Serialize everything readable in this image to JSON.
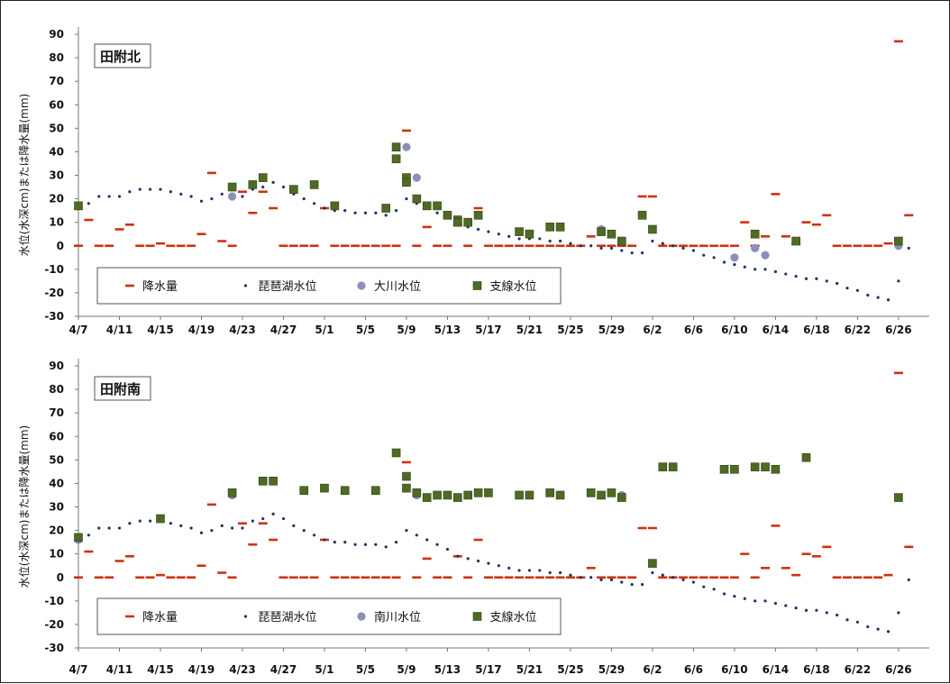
{
  "chart_data": [
    {
      "type": "scatter",
      "title": "田附北",
      "ylabel": "水位(水深cm)または降水量(mm)",
      "ylim": [
        -30,
        90
      ],
      "yticks": [
        90,
        80,
        70,
        60,
        50,
        40,
        30,
        20,
        10,
        0,
        -10,
        -20,
        -30
      ],
      "xtick_labels": [
        "4/7",
        "4/11",
        "4/15",
        "4/19",
        "4/23",
        "4/27",
        "5/1",
        "5/5",
        "5/9",
        "5/13",
        "5/17",
        "5/21",
        "5/25",
        "5/29",
        "6/2",
        "6/6",
        "6/10",
        "6/14",
        "6/18",
        "6/22",
        "6/26"
      ],
      "grid": false,
      "legend_position": "bottom-left",
      "series": [
        {
          "name": "降水量",
          "marker": "dash",
          "color": "#cc3311",
          "x": [
            "4/7",
            "4/8",
            "4/9",
            "4/10",
            "4/11",
            "4/12",
            "4/13",
            "4/14",
            "4/15",
            "4/16",
            "4/17",
            "4/18",
            "4/19",
            "4/20",
            "4/21",
            "4/22",
            "4/23",
            "4/24",
            "4/25",
            "4/26",
            "4/27",
            "4/28",
            "4/29",
            "4/30",
            "5/1",
            "5/2",
            "5/3",
            "5/4",
            "5/5",
            "5/6",
            "5/7",
            "5/8",
            "5/9",
            "5/10",
            "5/11",
            "5/12",
            "5/13",
            "5/14",
            "5/15",
            "5/16",
            "5/17",
            "5/18",
            "5/19",
            "5/20",
            "5/21",
            "5/22",
            "5/23",
            "5/24",
            "5/25",
            "5/26",
            "5/27",
            "5/28",
            "5/29",
            "5/30",
            "5/31",
            "6/1",
            "6/2",
            "6/3",
            "6/4",
            "6/5",
            "6/6",
            "6/7",
            "6/8",
            "6/9",
            "6/10",
            "6/11",
            "6/12",
            "6/13",
            "6/14",
            "6/15",
            "6/16",
            "6/17",
            "6/18",
            "6/19",
            "6/20",
            "6/21",
            "6/22",
            "6/23",
            "6/24",
            "6/25",
            "6/26",
            "6/27"
          ],
          "y": [
            0,
            11,
            0,
            0,
            7,
            9,
            0,
            0,
            1,
            0,
            0,
            0,
            5,
            31,
            2,
            0,
            23,
            14,
            23,
            16,
            0,
            0,
            0,
            0,
            16,
            0,
            0,
            0,
            0,
            0,
            0,
            0,
            49,
            0,
            8,
            0,
            0,
            9,
            0,
            16,
            0,
            0,
            0,
            0,
            0,
            0,
            0,
            0,
            0,
            0,
            4,
            0,
            0,
            0,
            0,
            21,
            21,
            0,
            0,
            0,
            0,
            0,
            0,
            0,
            0,
            10,
            0,
            4,
            22,
            4,
            1,
            10,
            9,
            13,
            0,
            0,
            0,
            0,
            0,
            1,
            87,
            13
          ]
        },
        {
          "name": "琵琶湖水位",
          "marker": "dot",
          "color": "#223366",
          "x": [
            "4/7",
            "4/8",
            "4/9",
            "4/10",
            "4/11",
            "4/12",
            "4/13",
            "4/14",
            "4/15",
            "4/16",
            "4/17",
            "4/18",
            "4/19",
            "4/20",
            "4/21",
            "4/22",
            "4/23",
            "4/24",
            "4/25",
            "4/26",
            "4/27",
            "4/28",
            "4/29",
            "4/30",
            "5/1",
            "5/2",
            "5/3",
            "5/4",
            "5/5",
            "5/6",
            "5/7",
            "5/8",
            "5/9",
            "5/10",
            "5/11",
            "5/12",
            "5/13",
            "5/14",
            "5/15",
            "5/16",
            "5/17",
            "5/18",
            "5/19",
            "5/20",
            "5/21",
            "5/22",
            "5/23",
            "5/24",
            "5/25",
            "5/26",
            "5/27",
            "5/28",
            "5/29",
            "5/30",
            "5/31",
            "6/1",
            "6/2",
            "6/3",
            "6/4",
            "6/5",
            "6/6",
            "6/7",
            "6/8",
            "6/9",
            "6/10",
            "6/11",
            "6/12",
            "6/13",
            "6/14",
            "6/15",
            "6/16",
            "6/17",
            "6/18",
            "6/19",
            "6/20",
            "6/21",
            "6/22",
            "6/23",
            "6/24",
            "6/25",
            "6/26",
            "6/27"
          ],
          "y": [
            16,
            18,
            21,
            21,
            21,
            23,
            24,
            24,
            24,
            23,
            22,
            21,
            19,
            20,
            22,
            21,
            21,
            24,
            25,
            27,
            25,
            22,
            20,
            18,
            16,
            15,
            15,
            14,
            14,
            14,
            13,
            15,
            20,
            18,
            16,
            14,
            12,
            9,
            8,
            7,
            6,
            5,
            4,
            3,
            3,
            3,
            2,
            2,
            1,
            0,
            0,
            -1,
            -1,
            -2,
            -3,
            -3,
            2,
            1,
            0,
            -1,
            -2,
            -4,
            -5,
            -7,
            -8,
            -9,
            -10,
            -10,
            -11,
            -12,
            -13,
            -14,
            -14,
            -15,
            -16,
            -18,
            -19,
            -21,
            -22,
            -23,
            -15,
            -1
          ]
        },
        {
          "name": "大川水位",
          "marker": "circle",
          "color": "#8c8fb8",
          "x": [
            "4/7",
            "4/22",
            "5/9",
            "5/10",
            "5/28",
            "5/29",
            "6/10",
            "6/12",
            "6/13",
            "6/26"
          ],
          "y": [
            17,
            21,
            42,
            29,
            7,
            5,
            -5,
            -1,
            -4,
            0
          ]
        },
        {
          "name": "支線水位",
          "marker": "square",
          "color": "#4e6a24",
          "x": [
            "4/7",
            "4/22",
            "4/24",
            "4/25",
            "4/28",
            "4/30",
            "5/2",
            "5/7",
            "5/8",
            "5/8",
            "5/9",
            "5/9",
            "5/10",
            "5/11",
            "5/12",
            "5/13",
            "5/14",
            "5/14",
            "5/15",
            "5/16",
            "5/20",
            "5/21",
            "5/23",
            "5/24",
            "5/28",
            "5/29",
            "5/30",
            "6/1",
            "6/2",
            "6/12",
            "6/16",
            "6/26"
          ],
          "y": [
            17,
            25,
            26,
            29,
            24,
            26,
            17,
            16,
            42,
            37,
            29,
            27,
            20,
            17,
            17,
            13,
            11,
            10,
            10,
            13,
            6,
            5,
            8,
            8,
            6,
            5,
            2,
            13,
            7,
            5,
            2,
            2
          ]
        }
      ]
    },
    {
      "type": "scatter",
      "title": "田附南",
      "ylabel": "水位(水深cm)または降水量(mm)",
      "ylim": [
        -30,
        90
      ],
      "yticks": [
        90,
        80,
        70,
        60,
        50,
        40,
        30,
        20,
        10,
        0,
        -10,
        -20,
        -30
      ],
      "xtick_labels": [
        "4/7",
        "4/11",
        "4/15",
        "4/19",
        "4/23",
        "4/27",
        "5/1",
        "5/5",
        "5/9",
        "5/13",
        "5/17",
        "5/21",
        "5/25",
        "5/29",
        "6/2",
        "6/6",
        "6/10",
        "6/14",
        "6/18",
        "6/22",
        "6/26"
      ],
      "grid": false,
      "legend_position": "bottom-left",
      "series": [
        {
          "name": "降水量",
          "marker": "dash",
          "color": "#cc3311",
          "x": [
            "4/7",
            "4/8",
            "4/9",
            "4/10",
            "4/11",
            "4/12",
            "4/13",
            "4/14",
            "4/15",
            "4/16",
            "4/17",
            "4/18",
            "4/19",
            "4/20",
            "4/21",
            "4/22",
            "4/23",
            "4/24",
            "4/25",
            "4/26",
            "4/27",
            "4/28",
            "4/29",
            "4/30",
            "5/1",
            "5/2",
            "5/3",
            "5/4",
            "5/5",
            "5/6",
            "5/7",
            "5/8",
            "5/9",
            "5/10",
            "5/11",
            "5/12",
            "5/13",
            "5/14",
            "5/15",
            "5/16",
            "5/17",
            "5/18",
            "5/19",
            "5/20",
            "5/21",
            "5/22",
            "5/23",
            "5/24",
            "5/25",
            "5/26",
            "5/27",
            "5/28",
            "5/29",
            "5/30",
            "5/31",
            "6/1",
            "6/2",
            "6/3",
            "6/4",
            "6/5",
            "6/6",
            "6/7",
            "6/8",
            "6/9",
            "6/10",
            "6/11",
            "6/12",
            "6/13",
            "6/14",
            "6/15",
            "6/16",
            "6/17",
            "6/18",
            "6/19",
            "6/20",
            "6/21",
            "6/22",
            "6/23",
            "6/24",
            "6/25",
            "6/26",
            "6/27"
          ],
          "y": [
            0,
            11,
            0,
            0,
            7,
            9,
            0,
            0,
            1,
            0,
            0,
            0,
            5,
            31,
            2,
            0,
            23,
            14,
            23,
            16,
            0,
            0,
            0,
            0,
            16,
            0,
            0,
            0,
            0,
            0,
            0,
            0,
            49,
            0,
            8,
            0,
            0,
            9,
            0,
            16,
            0,
            0,
            0,
            0,
            0,
            0,
            0,
            0,
            0,
            0,
            4,
            0,
            0,
            0,
            0,
            21,
            21,
            0,
            0,
            0,
            0,
            0,
            0,
            0,
            0,
            10,
            0,
            4,
            22,
            4,
            1,
            10,
            9,
            13,
            0,
            0,
            0,
            0,
            0,
            1,
            87,
            13
          ]
        },
        {
          "name": "琵琶湖水位",
          "marker": "dot",
          "color": "#223366",
          "x": [
            "4/7",
            "4/8",
            "4/9",
            "4/10",
            "4/11",
            "4/12",
            "4/13",
            "4/14",
            "4/15",
            "4/16",
            "4/17",
            "4/18",
            "4/19",
            "4/20",
            "4/21",
            "4/22",
            "4/23",
            "4/24",
            "4/25",
            "4/26",
            "4/27",
            "4/28",
            "4/29",
            "4/30",
            "5/1",
            "5/2",
            "5/3",
            "5/4",
            "5/5",
            "5/6",
            "5/7",
            "5/8",
            "5/9",
            "5/10",
            "5/11",
            "5/12",
            "5/13",
            "5/14",
            "5/15",
            "5/16",
            "5/17",
            "5/18",
            "5/19",
            "5/20",
            "5/21",
            "5/22",
            "5/23",
            "5/24",
            "5/25",
            "5/26",
            "5/27",
            "5/28",
            "5/29",
            "5/30",
            "5/31",
            "6/1",
            "6/2",
            "6/3",
            "6/4",
            "6/5",
            "6/6",
            "6/7",
            "6/8",
            "6/9",
            "6/10",
            "6/11",
            "6/12",
            "6/13",
            "6/14",
            "6/15",
            "6/16",
            "6/17",
            "6/18",
            "6/19",
            "6/20",
            "6/21",
            "6/22",
            "6/23",
            "6/24",
            "6/25",
            "6/26",
            "6/27"
          ],
          "y": [
            16,
            18,
            21,
            21,
            21,
            23,
            24,
            24,
            24,
            23,
            22,
            21,
            19,
            20,
            22,
            21,
            21,
            24,
            25,
            27,
            25,
            22,
            20,
            18,
            16,
            15,
            15,
            14,
            14,
            14,
            13,
            15,
            20,
            18,
            16,
            14,
            12,
            9,
            8,
            7,
            6,
            5,
            4,
            3,
            3,
            3,
            2,
            2,
            1,
            0,
            0,
            -1,
            -1,
            -2,
            -3,
            -3,
            2,
            1,
            0,
            -1,
            -2,
            -4,
            -5,
            -7,
            -8,
            -9,
            -10,
            -10,
            -11,
            -12,
            -13,
            -14,
            -14,
            -15,
            -16,
            -18,
            -19,
            -21,
            -22,
            -23,
            -15,
            -1
          ]
        },
        {
          "name": "南川水位",
          "marker": "circle",
          "color": "#8c8fb8",
          "x": [
            "4/7",
            "4/22",
            "5/9",
            "5/10",
            "5/30",
            "6/2",
            "6/10"
          ],
          "y": [
            16,
            35,
            43,
            35,
            35,
            6,
            46
          ]
        },
        {
          "name": "支線水位",
          "marker": "square",
          "color": "#4e6a24",
          "x": [
            "4/7",
            "4/15",
            "4/22",
            "4/25",
            "4/26",
            "4/29",
            "5/1",
            "5/3",
            "5/6",
            "5/8",
            "5/9",
            "5/9",
            "5/10",
            "5/11",
            "5/12",
            "5/13",
            "5/14",
            "5/15",
            "5/16",
            "5/17",
            "5/20",
            "5/21",
            "5/23",
            "5/24",
            "5/27",
            "5/28",
            "5/29",
            "5/30",
            "6/2",
            "6/3",
            "6/4",
            "6/9",
            "6/10",
            "6/12",
            "6/13",
            "6/14",
            "6/17",
            "6/26"
          ],
          "y": [
            17,
            25,
            36,
            41,
            41,
            37,
            38,
            37,
            37,
            53,
            43,
            38,
            36,
            34,
            35,
            35,
            34,
            35,
            36,
            36,
            35,
            35,
            36,
            35,
            36,
            35,
            36,
            34,
            6,
            47,
            47,
            46,
            46,
            47,
            47,
            46,
            51,
            34
          ]
        }
      ]
    }
  ]
}
